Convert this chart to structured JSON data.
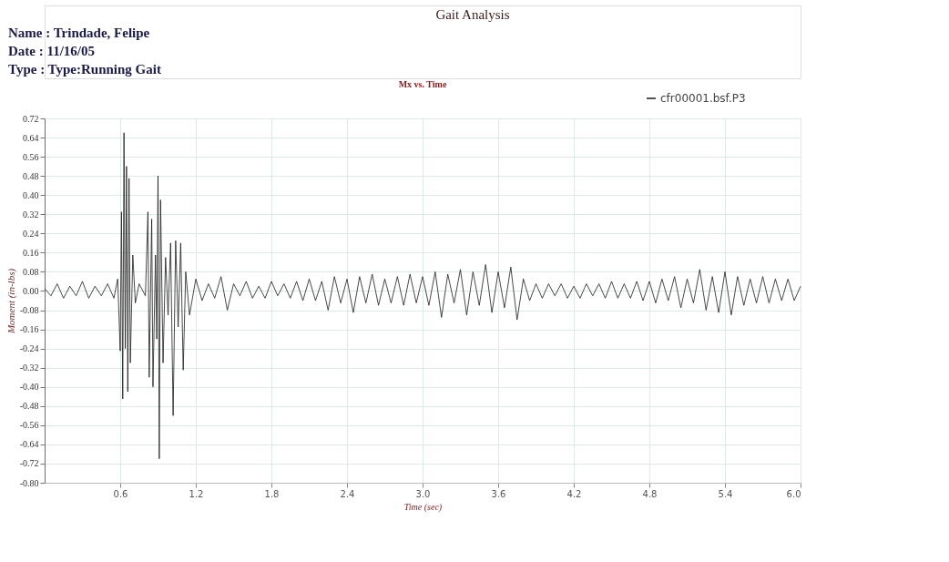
{
  "chart_data": {
    "type": "line",
    "title": "Gait Analysis",
    "subtitle": "Mx vs. Time",
    "annotations": [
      "Name : Trindade, Felipe",
      "Date : 11/16/05",
      "Type : Type:Running Gait"
    ],
    "xlabel": "Time (sec)",
    "ylabel": "Moment (in-lbs)",
    "xlim": [
      0,
      6
    ],
    "xticks": [
      0.6,
      1.2,
      1.8,
      2.4,
      {
        "value": 3,
        "label": "3.0"
      },
      3.6,
      4.2,
      4.8,
      5.4,
      {
        "value": 6,
        "label": "6.0"
      }
    ],
    "ylim": [
      -0.8,
      0.72
    ],
    "yticks": [
      {
        "value": -0.8,
        "label": "-0.80"
      },
      {
        "value": -0.72,
        "label": "-0.72"
      },
      {
        "value": -0.64,
        "label": "-0.64"
      },
      {
        "value": -0.56,
        "label": "-0.56"
      },
      {
        "value": -0.48,
        "label": "-0.48"
      },
      {
        "value": -0.4,
        "label": "-0.40"
      },
      {
        "value": -0.32,
        "label": "-0.32"
      },
      {
        "value": -0.24,
        "label": "-0.24"
      },
      {
        "value": -0.16,
        "label": "-0.16"
      },
      {
        "value": -0.08,
        "label": "-0.08"
      },
      {
        "value": 0,
        "label": "0.00"
      },
      {
        "value": 0.08,
        "label": "0.08"
      },
      {
        "value": 0.16,
        "label": "0.16"
      },
      {
        "value": 0.24,
        "label": "0.24"
      },
      {
        "value": 0.32,
        "label": "0.32"
      },
      {
        "value": 0.4,
        "label": "0.40"
      },
      {
        "value": 0.48,
        "label": "0.48"
      },
      {
        "value": 0.56,
        "label": "0.56"
      },
      {
        "value": 0.64,
        "label": "0.64"
      },
      {
        "value": 0.72,
        "label": "0.72"
      }
    ],
    "grid": true,
    "legend": "top right",
    "marker": "none",
    "line_style": "solid",
    "series": [
      {
        "name": "cfr00001.bsf.P3",
        "color": "#1a1a1a",
        "x": [
          0.0,
          0.05,
          0.1,
          0.15,
          0.2,
          0.25,
          0.3,
          0.35,
          0.4,
          0.45,
          0.5,
          0.55,
          0.58,
          0.6,
          0.61,
          0.62,
          0.63,
          0.64,
          0.65,
          0.66,
          0.67,
          0.68,
          0.7,
          0.72,
          0.75,
          0.8,
          0.82,
          0.83,
          0.85,
          0.86,
          0.88,
          0.89,
          0.9,
          0.91,
          0.92,
          0.94,
          0.96,
          0.98,
          1.0,
          1.02,
          1.04,
          1.06,
          1.08,
          1.1,
          1.12,
          1.15,
          1.2,
          1.25,
          1.3,
          1.35,
          1.4,
          1.45,
          1.5,
          1.55,
          1.6,
          1.65,
          1.7,
          1.75,
          1.8,
          1.85,
          1.9,
          1.95,
          2.0,
          2.05,
          2.1,
          2.15,
          2.2,
          2.25,
          2.3,
          2.35,
          2.4,
          2.45,
          2.5,
          2.55,
          2.6,
          2.65,
          2.7,
          2.75,
          2.8,
          2.85,
          2.9,
          2.95,
          3.0,
          3.05,
          3.1,
          3.15,
          3.2,
          3.25,
          3.3,
          3.35,
          3.4,
          3.45,
          3.5,
          3.55,
          3.6,
          3.65,
          3.7,
          3.75,
          3.8,
          3.85,
          3.9,
          3.95,
          4.0,
          4.05,
          4.1,
          4.15,
          4.2,
          4.25,
          4.3,
          4.35,
          4.4,
          4.45,
          4.5,
          4.55,
          4.6,
          4.65,
          4.7,
          4.75,
          4.8,
          4.85,
          4.9,
          4.95,
          5.0,
          5.05,
          5.1,
          5.15,
          5.2,
          5.25,
          5.3,
          5.35,
          5.4,
          5.45,
          5.5,
          5.55,
          5.6,
          5.65,
          5.7,
          5.75,
          5.8,
          5.85,
          5.9,
          5.95,
          6.0
        ],
        "values": [
          0.01,
          -0.02,
          0.03,
          -0.03,
          0.02,
          -0.02,
          0.04,
          -0.03,
          0.02,
          -0.02,
          0.03,
          -0.03,
          0.05,
          -0.25,
          0.33,
          -0.45,
          0.66,
          -0.24,
          0.52,
          -0.42,
          0.47,
          -0.3,
          0.15,
          -0.05,
          0.03,
          -0.02,
          0.33,
          -0.36,
          0.3,
          -0.4,
          0.15,
          -0.2,
          0.48,
          -0.7,
          0.38,
          -0.3,
          0.14,
          -0.1,
          0.2,
          -0.52,
          0.21,
          -0.15,
          0.2,
          -0.33,
          0.08,
          -0.1,
          0.05,
          -0.04,
          0.03,
          -0.03,
          0.06,
          -0.08,
          0.03,
          -0.02,
          0.04,
          -0.03,
          0.02,
          -0.03,
          0.04,
          -0.02,
          0.03,
          -0.03,
          0.04,
          -0.04,
          0.05,
          -0.04,
          0.04,
          -0.08,
          0.06,
          -0.05,
          0.05,
          -0.09,
          0.06,
          -0.05,
          0.07,
          -0.06,
          0.05,
          -0.05,
          0.06,
          -0.06,
          0.07,
          -0.05,
          0.06,
          -0.06,
          0.08,
          -0.11,
          0.07,
          -0.05,
          0.09,
          -0.1,
          0.08,
          -0.06,
          0.11,
          -0.09,
          0.08,
          -0.07,
          0.1,
          -0.12,
          0.05,
          -0.04,
          0.03,
          -0.03,
          0.03,
          -0.02,
          0.03,
          -0.03,
          0.02,
          -0.03,
          0.03,
          -0.02,
          0.03,
          -0.03,
          0.04,
          -0.03,
          0.03,
          -0.03,
          0.04,
          -0.04,
          0.04,
          -0.05,
          0.05,
          -0.04,
          0.06,
          -0.07,
          0.05,
          -0.05,
          0.09,
          -0.08,
          0.06,
          -0.09,
          0.08,
          -0.1,
          0.06,
          -0.06,
          0.05,
          -0.05,
          0.06,
          -0.05,
          0.05,
          -0.04,
          0.05,
          -0.04,
          0.02
        ]
      }
    ]
  }
}
